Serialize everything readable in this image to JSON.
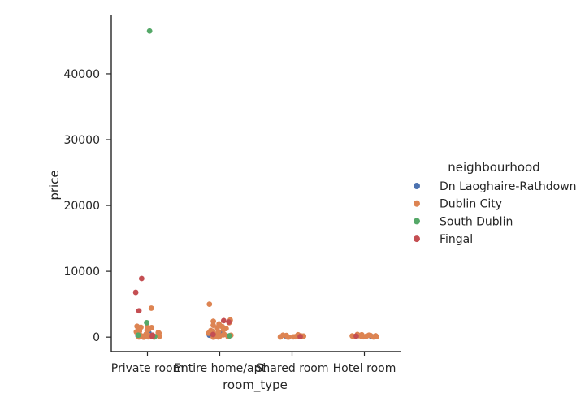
{
  "chart_data": {
    "type": "scatter",
    "style": "categorical strip plot",
    "categories": [
      "Private room",
      "Entire home/apt",
      "Shared room",
      "Hotel room"
    ],
    "xlabel": "room_type",
    "ylabel": "price",
    "ylim": [
      -2200,
      49000
    ],
    "yticks": [
      0,
      10000,
      20000,
      30000,
      40000
    ],
    "grid": false,
    "legend_placement": "right",
    "legend_title": "neighbourhood",
    "series": [
      {
        "name": "Dn Laoghaire-Rathdown",
        "color": "#4c72b0",
        "points": [
          {
            "category": "Private room",
            "y": 1100
          },
          {
            "category": "Private room",
            "y": 650
          },
          {
            "category": "Private room",
            "y": 200
          },
          {
            "category": "Private room",
            "y": 90
          },
          {
            "category": "Private room",
            "y": 400
          },
          {
            "category": "Private room",
            "y": 60
          },
          {
            "category": "Entire home/apt",
            "y": 300
          },
          {
            "category": "Entire home/apt",
            "y": 150
          },
          {
            "category": "Entire home/apt",
            "y": 600
          },
          {
            "category": "Entire home/apt",
            "y": 80
          },
          {
            "category": "Shared room",
            "y": 50
          },
          {
            "category": "Hotel room",
            "y": 120
          }
        ]
      },
      {
        "name": "Dublin City",
        "color": "#dd8452",
        "points": [
          {
            "category": "Private room",
            "y": 4400
          },
          {
            "category": "Private room",
            "y": 1650
          },
          {
            "category": "Private room",
            "y": 1550
          },
          {
            "category": "Private room",
            "y": 1500
          },
          {
            "category": "Private room",
            "y": 1450
          },
          {
            "category": "Private room",
            "y": 1350
          },
          {
            "category": "Private room",
            "y": 1200
          },
          {
            "category": "Private room",
            "y": 1000
          },
          {
            "category": "Private room",
            "y": 900
          },
          {
            "category": "Private room",
            "y": 800
          },
          {
            "category": "Private room",
            "y": 700
          },
          {
            "category": "Private room",
            "y": 600
          },
          {
            "category": "Private room",
            "y": 500
          },
          {
            "category": "Private room",
            "y": 450
          },
          {
            "category": "Private room",
            "y": 400
          },
          {
            "category": "Private room",
            "y": 350
          },
          {
            "category": "Private room",
            "y": 300
          },
          {
            "category": "Private room",
            "y": 250
          },
          {
            "category": "Private room",
            "y": 200
          },
          {
            "category": "Private room",
            "y": 150
          },
          {
            "category": "Private room",
            "y": 120
          },
          {
            "category": "Private room",
            "y": 100
          },
          {
            "category": "Private room",
            "y": 80
          },
          {
            "category": "Private room",
            "y": 60
          },
          {
            "category": "Private room",
            "y": 40
          },
          {
            "category": "Private room",
            "y": 30
          },
          {
            "category": "Private room",
            "y": 20
          },
          {
            "category": "Private room",
            "y": 10
          },
          {
            "category": "Private room",
            "y": 0
          },
          {
            "category": "Private room",
            "y": 0
          },
          {
            "category": "Entire home/apt",
            "y": 5000
          },
          {
            "category": "Entire home/apt",
            "y": 2600
          },
          {
            "category": "Entire home/apt",
            "y": 2400
          },
          {
            "category": "Entire home/apt",
            "y": 2200
          },
          {
            "category": "Entire home/apt",
            "y": 2000
          },
          {
            "category": "Entire home/apt",
            "y": 1800
          },
          {
            "category": "Entire home/apt",
            "y": 1600
          },
          {
            "category": "Entire home/apt",
            "y": 1450
          },
          {
            "category": "Entire home/apt",
            "y": 1300
          },
          {
            "category": "Entire home/apt",
            "y": 1150
          },
          {
            "category": "Entire home/apt",
            "y": 1000
          },
          {
            "category": "Entire home/apt",
            "y": 900
          },
          {
            "category": "Entire home/apt",
            "y": 800
          },
          {
            "category": "Entire home/apt",
            "y": 700
          },
          {
            "category": "Entire home/apt",
            "y": 600
          },
          {
            "category": "Entire home/apt",
            "y": 500
          },
          {
            "category": "Entire home/apt",
            "y": 420
          },
          {
            "category": "Entire home/apt",
            "y": 350
          },
          {
            "category": "Entire home/apt",
            "y": 280
          },
          {
            "category": "Entire home/apt",
            "y": 220
          },
          {
            "category": "Entire home/apt",
            "y": 170
          },
          {
            "category": "Entire home/apt",
            "y": 130
          },
          {
            "category": "Entire home/apt",
            "y": 100
          },
          {
            "category": "Entire home/apt",
            "y": 70
          },
          {
            "category": "Entire home/apt",
            "y": 50
          },
          {
            "category": "Entire home/apt",
            "y": 30
          },
          {
            "category": "Entire home/apt",
            "y": 10
          },
          {
            "category": "Entire home/apt",
            "y": 0
          },
          {
            "category": "Shared room",
            "y": 350
          },
          {
            "category": "Shared room",
            "y": 300
          },
          {
            "category": "Shared room",
            "y": 250
          },
          {
            "category": "Shared room",
            "y": 220
          },
          {
            "category": "Shared room",
            "y": 180
          },
          {
            "category": "Shared room",
            "y": 150
          },
          {
            "category": "Shared room",
            "y": 120
          },
          {
            "category": "Shared room",
            "y": 100
          },
          {
            "category": "Shared room",
            "y": 80
          },
          {
            "category": "Shared room",
            "y": 60
          },
          {
            "category": "Shared room",
            "y": 40
          },
          {
            "category": "Shared room",
            "y": 30
          },
          {
            "category": "Shared room",
            "y": 20
          },
          {
            "category": "Shared room",
            "y": 10
          },
          {
            "category": "Hotel room",
            "y": 400
          },
          {
            "category": "Hotel room",
            "y": 350
          },
          {
            "category": "Hotel room",
            "y": 300
          },
          {
            "category": "Hotel room",
            "y": 260
          },
          {
            "category": "Hotel room",
            "y": 230
          },
          {
            "category": "Hotel room",
            "y": 200
          },
          {
            "category": "Hotel room",
            "y": 180
          },
          {
            "category": "Hotel room",
            "y": 160
          },
          {
            "category": "Hotel room",
            "y": 140
          },
          {
            "category": "Hotel room",
            "y": 110
          },
          {
            "category": "Hotel room",
            "y": 90
          },
          {
            "category": "Hotel room",
            "y": 70
          },
          {
            "category": "Hotel room",
            "y": 50
          },
          {
            "category": "Hotel room",
            "y": 30
          }
        ]
      },
      {
        "name": "South Dublin",
        "color": "#55a868",
        "points": [
          {
            "category": "Private room",
            "y": 46500
          },
          {
            "category": "Private room",
            "y": 2200
          },
          {
            "category": "Private room",
            "y": 300
          },
          {
            "category": "Private room",
            "y": 100
          },
          {
            "category": "Entire home/apt",
            "y": 200
          }
        ]
      },
      {
        "name": "Fingal",
        "color": "#c44e52",
        "points": [
          {
            "category": "Private room",
            "y": 8900
          },
          {
            "category": "Private room",
            "y": 6800
          },
          {
            "category": "Private room",
            "y": 4000
          },
          {
            "category": "Private room",
            "y": 300
          },
          {
            "category": "Private room",
            "y": 100
          },
          {
            "category": "Entire home/apt",
            "y": 2500
          },
          {
            "category": "Entire home/apt",
            "y": 2300
          },
          {
            "category": "Entire home/apt",
            "y": 400
          },
          {
            "category": "Shared room",
            "y": 80
          },
          {
            "category": "Hotel room",
            "y": 150
          }
        ]
      }
    ]
  }
}
